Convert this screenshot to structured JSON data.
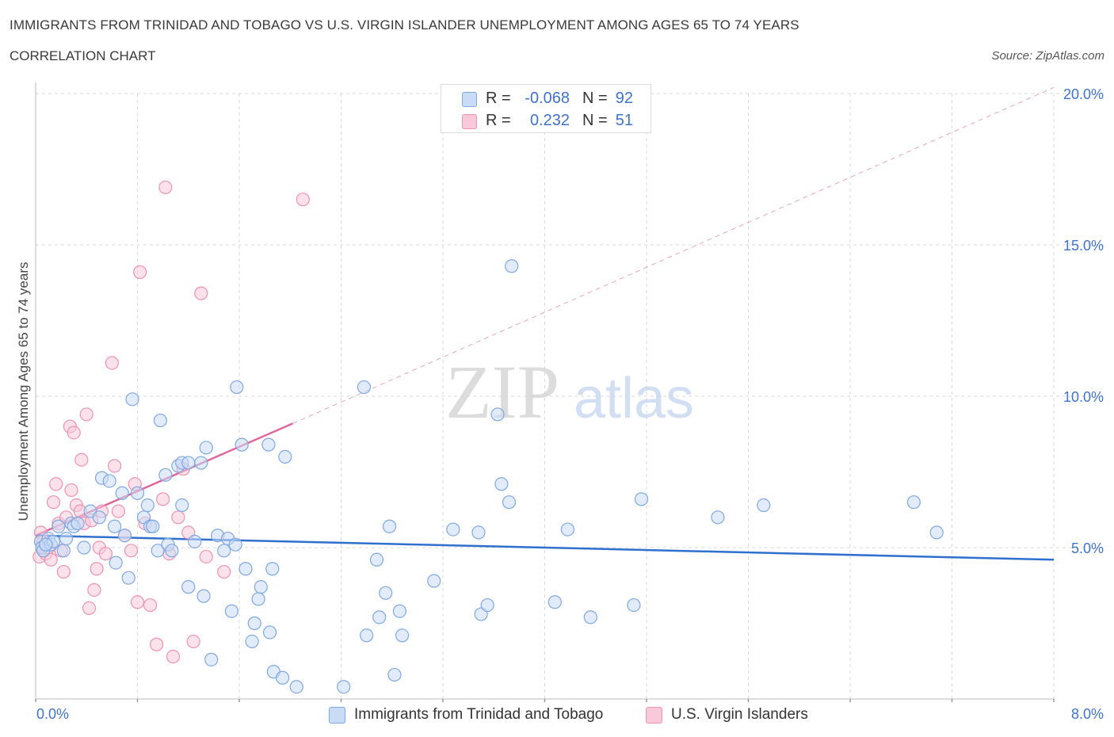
{
  "header": {
    "title": "IMMIGRANTS FROM TRINIDAD AND TOBAGO VS U.S. VIRGIN ISLANDER UNEMPLOYMENT AMONG AGES 65 TO 74 YEARS",
    "subtitle": "CORRELATION CHART",
    "source": "Source: ZipAtlas.com"
  },
  "watermark": {
    "zip": "ZIP",
    "atlas": "atlas"
  },
  "legend_top": {
    "rows": [
      {
        "r_label": "R =",
        "r_value": "-0.068",
        "n_label": "N =",
        "n_value": "92"
      },
      {
        "r_label": "R =",
        "r_value": "0.232",
        "n_label": "N =",
        "n_value": "51"
      }
    ]
  },
  "legend_bottom": {
    "items": [
      {
        "label": "Immigrants from Trinidad and Tobago"
      },
      {
        "label": "U.S. Virgin Islanders"
      }
    ]
  },
  "colors": {
    "blue_fill": "#c9dbf5",
    "blue_stroke": "#7fa8e0",
    "blue_line": "#2f6fce",
    "pink_fill": "#f8c9d8",
    "pink_stroke": "#ec93b0",
    "pink_line": "#e0679a",
    "axis_label": "#3f73c9",
    "grid": "#d9d9d9"
  },
  "chart_data": {
    "type": "scatter",
    "xlabel": "",
    "ylabel": "Unemployment Among Ages 65 to 74 years",
    "xlim": [
      0,
      8
    ],
    "ylim": [
      0,
      20
    ],
    "x_tick_labels": {
      "min": "0.0%",
      "max": "8.0%"
    },
    "y_ticks": [
      {
        "value": 5,
        "label": "5.0%"
      },
      {
        "value": 10,
        "label": "10.0%"
      },
      {
        "value": 15,
        "label": "15.0%"
      },
      {
        "value": 20,
        "label": "20.0%"
      }
    ],
    "grid": true,
    "legend_placement": "bottom",
    "series": [
      {
        "name": "Immigrants from Trinidad and Tobago",
        "trend": {
          "x": [
            0,
            8
          ],
          "y": [
            5.4,
            4.6
          ],
          "dashed_extension": false
        },
        "points": [
          [
            0.04,
            5.2
          ],
          [
            0.05,
            5.0
          ],
          [
            0.06,
            4.9
          ],
          [
            0.08,
            5.1
          ],
          [
            0.1,
            5.3
          ],
          [
            0.12,
            5.1
          ],
          [
            0.14,
            5.2
          ],
          [
            0.18,
            5.7
          ],
          [
            0.22,
            4.9
          ],
          [
            0.24,
            5.3
          ],
          [
            0.28,
            5.8
          ],
          [
            0.3,
            5.7
          ],
          [
            0.33,
            5.8
          ],
          [
            0.38,
            5.0
          ],
          [
            0.43,
            6.2
          ],
          [
            0.5,
            6.0
          ],
          [
            0.52,
            7.3
          ],
          [
            0.58,
            7.2
          ],
          [
            0.62,
            5.7
          ],
          [
            0.63,
            4.5
          ],
          [
            0.68,
            6.8
          ],
          [
            0.7,
            5.4
          ],
          [
            0.73,
            4.0
          ],
          [
            0.76,
            9.9
          ],
          [
            0.8,
            6.8
          ],
          [
            0.85,
            6.0
          ],
          [
            0.88,
            6.4
          ],
          [
            0.9,
            5.7
          ],
          [
            0.92,
            5.7
          ],
          [
            0.96,
            4.9
          ],
          [
            0.98,
            9.2
          ],
          [
            1.02,
            7.4
          ],
          [
            1.04,
            5.1
          ],
          [
            1.07,
            4.9
          ],
          [
            1.12,
            7.7
          ],
          [
            1.15,
            7.8
          ],
          [
            1.15,
            6.4
          ],
          [
            1.2,
            7.8
          ],
          [
            1.2,
            3.7
          ],
          [
            1.25,
            5.2
          ],
          [
            1.3,
            7.8
          ],
          [
            1.32,
            3.4
          ],
          [
            1.34,
            8.3
          ],
          [
            1.38,
            1.3
          ],
          [
            1.43,
            5.4
          ],
          [
            1.48,
            4.9
          ],
          [
            1.51,
            5.3
          ],
          [
            1.54,
            2.9
          ],
          [
            1.57,
            5.1
          ],
          [
            1.58,
            10.3
          ],
          [
            1.62,
            8.4
          ],
          [
            1.65,
            4.3
          ],
          [
            1.7,
            1.9
          ],
          [
            1.72,
            2.5
          ],
          [
            1.75,
            3.3
          ],
          [
            1.77,
            3.7
          ],
          [
            1.83,
            8.4
          ],
          [
            1.84,
            2.2
          ],
          [
            1.86,
            4.3
          ],
          [
            1.87,
            0.9
          ],
          [
            1.94,
            0.7
          ],
          [
            1.96,
            8.0
          ],
          [
            2.05,
            0.4
          ],
          [
            2.42,
            0.4
          ],
          [
            2.58,
            10.3
          ],
          [
            2.6,
            2.1
          ],
          [
            2.68,
            4.6
          ],
          [
            2.7,
            2.7
          ],
          [
            2.75,
            3.5
          ],
          [
            2.78,
            5.7
          ],
          [
            2.82,
            0.8
          ],
          [
            2.86,
            2.9
          ],
          [
            2.88,
            2.1
          ],
          [
            3.13,
            3.9
          ],
          [
            3.28,
            5.6
          ],
          [
            3.48,
            5.5
          ],
          [
            3.5,
            2.8
          ],
          [
            3.55,
            3.1
          ],
          [
            3.63,
            9.4
          ],
          [
            3.66,
            7.1
          ],
          [
            3.72,
            6.5
          ],
          [
            3.74,
            14.3
          ],
          [
            4.08,
            3.2
          ],
          [
            4.18,
            5.6
          ],
          [
            4.36,
            2.7
          ],
          [
            4.7,
            3.1
          ],
          [
            4.76,
            6.6
          ],
          [
            5.36,
            6.0
          ],
          [
            5.72,
            6.4
          ],
          [
            6.9,
            6.5
          ],
          [
            7.08,
            5.5
          ],
          [
            0.08,
            5.1
          ]
        ]
      },
      {
        "name": "U.S. Virgin Islanders",
        "trend": {
          "x": [
            0,
            2.02
          ],
          "y": [
            5.4,
            9.1
          ],
          "dashed_extension": true,
          "dashed_to": [
            8,
            20.2
          ]
        },
        "points": [
          [
            0.03,
            4.7
          ],
          [
            0.04,
            5.5
          ],
          [
            0.05,
            5.0
          ],
          [
            0.06,
            5.2
          ],
          [
            0.08,
            4.8
          ],
          [
            0.1,
            5.0
          ],
          [
            0.12,
            4.6
          ],
          [
            0.14,
            6.5
          ],
          [
            0.16,
            7.1
          ],
          [
            0.18,
            5.8
          ],
          [
            0.2,
            4.9
          ],
          [
            0.22,
            4.2
          ],
          [
            0.24,
            6.0
          ],
          [
            0.27,
            9.0
          ],
          [
            0.28,
            6.9
          ],
          [
            0.3,
            8.8
          ],
          [
            0.32,
            6.4
          ],
          [
            0.35,
            6.2
          ],
          [
            0.36,
            7.9
          ],
          [
            0.38,
            5.8
          ],
          [
            0.4,
            9.4
          ],
          [
            0.42,
            3.0
          ],
          [
            0.44,
            5.9
          ],
          [
            0.46,
            3.6
          ],
          [
            0.48,
            4.3
          ],
          [
            0.5,
            5.0
          ],
          [
            0.52,
            6.2
          ],
          [
            0.55,
            4.8
          ],
          [
            0.6,
            11.1
          ],
          [
            0.62,
            7.7
          ],
          [
            0.65,
            6.2
          ],
          [
            0.7,
            5.4
          ],
          [
            0.75,
            4.9
          ],
          [
            0.78,
            7.1
          ],
          [
            0.8,
            3.2
          ],
          [
            0.82,
            14.1
          ],
          [
            0.86,
            5.8
          ],
          [
            0.9,
            3.1
          ],
          [
            0.95,
            1.8
          ],
          [
            1.0,
            6.6
          ],
          [
            1.02,
            16.9
          ],
          [
            1.05,
            4.8
          ],
          [
            1.08,
            1.4
          ],
          [
            1.12,
            6.0
          ],
          [
            1.16,
            7.6
          ],
          [
            1.2,
            5.5
          ],
          [
            1.24,
            1.9
          ],
          [
            1.3,
            13.4
          ],
          [
            1.34,
            4.7
          ],
          [
            1.48,
            4.2
          ],
          [
            2.1,
            16.5
          ]
        ]
      }
    ]
  }
}
